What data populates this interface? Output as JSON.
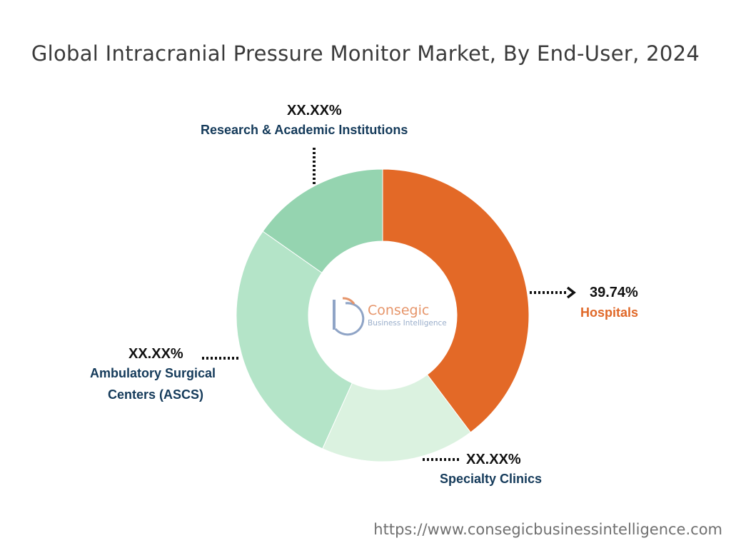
{
  "title": "Global Intracranial Pressure Monitor Market, By End-User, 2024",
  "footer_url": "https://www.consegicbusinessintelligence.com",
  "logo": {
    "name": "Consegic",
    "tagline": "Business Intelligence"
  },
  "chart_data": {
    "type": "pie",
    "variant": "donut",
    "title": "Global Intracranial Pressure Monitor Market, By End-User, 2024",
    "slices": [
      {
        "label": "Hospitals",
        "value": 39.74,
        "display": "39.74%",
        "color": "#e36927"
      },
      {
        "label": "Specialty Clinics",
        "value": 17,
        "display": "XX.XX%",
        "color": "#dbf2e0"
      },
      {
        "label": "Ambulatory Surgical Centers (ASCS)",
        "value": 28,
        "display": "XX.XX%",
        "color": "#b4e4c8"
      },
      {
        "label": "Research & Academic Institutions",
        "value": 15.26,
        "display": "XX.XX%",
        "color": "#95d4b0"
      }
    ],
    "start_angle_deg": 0,
    "direction": "clockwise",
    "legend": "none"
  },
  "labels": {
    "hospitals": {
      "pct": "39.74%",
      "name": "Hospitals"
    },
    "specialty": {
      "pct": "XX.XX%",
      "name": "Specialty Clinics"
    },
    "ascs": {
      "pct": "XX.XX%",
      "name_line1": "Ambulatory Surgical",
      "name_line2": "Centers (ASCS)"
    },
    "research": {
      "pct": "XX.XX%",
      "name": "Research & Academic Institutions"
    }
  }
}
